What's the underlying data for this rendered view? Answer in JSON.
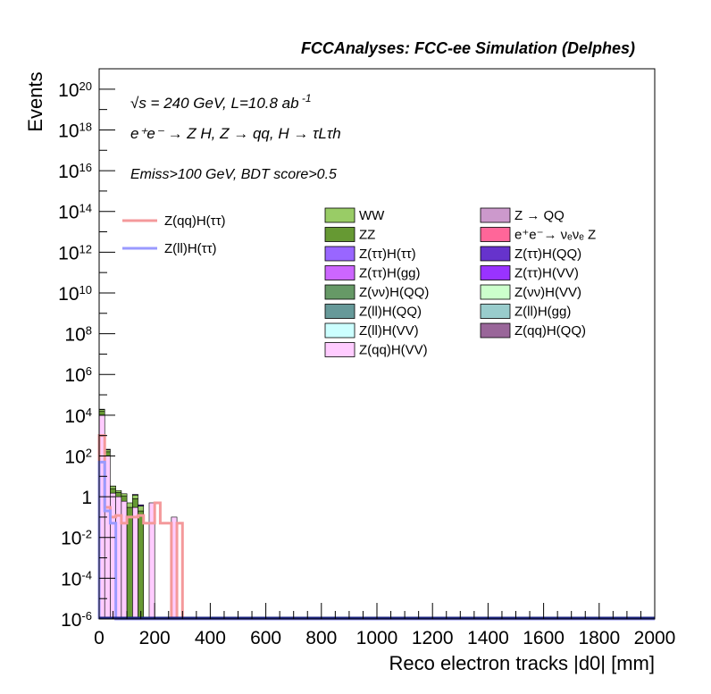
{
  "chart_data": {
    "type": "histogram",
    "title": "FCCAnalyses: FCC-ee Simulation (Delphes)",
    "xlabel": "Reco electron tracks |d0| [mm]",
    "ylabel": "Events",
    "xlim": [
      0,
      2000
    ],
    "ylim": [
      1e-06,
      1e+21
    ],
    "yscale": "log",
    "grid": false,
    "annotations": [
      "√s = 240 GeV, L=10.8 ab⁻¹",
      "e⁺e⁻ → Z H, Z → qq, H → τLτh",
      "Emiss>100 GeV, BDT score>0.5"
    ],
    "x_ticks": [
      0,
      200,
      400,
      600,
      800,
      1000,
      1200,
      1400,
      1600,
      1800,
      2000
    ],
    "y_ticks": [
      "10^-6",
      "10^-4",
      "10^-2",
      "1",
      "10^2",
      "10^4",
      "10^6",
      "10^8",
      "10^10",
      "10^12",
      "10^14",
      "10^16",
      "10^18",
      "10^20"
    ],
    "signal_legend": [
      {
        "name": "Z(qq)H(ττ)",
        "color": "#f4999b"
      },
      {
        "name": "Z(ll)H(ττ)",
        "color": "#9a9aff"
      }
    ],
    "background_legend": [
      {
        "name": "WW",
        "color": "#99cc66"
      },
      {
        "name": "Z → QQ",
        "color": "#cc99cc"
      },
      {
        "name": "ZZ",
        "color": "#669933"
      },
      {
        "name": "e⁺e⁻→ νₑνₑ Z",
        "color": "#ff6699"
      },
      {
        "name": "Z(ττ)H(ττ)",
        "color": "#9966ff"
      },
      {
        "name": "Z(ττ)H(QQ)",
        "color": "#6633cc"
      },
      {
        "name": "Z(ττ)H(gg)",
        "color": "#cc66ff"
      },
      {
        "name": "Z(ττ)H(VV)",
        "color": "#9933ff"
      },
      {
        "name": "Z(νν)H(QQ)",
        "color": "#669966"
      },
      {
        "name": "Z(νν)H(VV)",
        "color": "#ccffcc"
      },
      {
        "name": "Z(ll)H(QQ)",
        "color": "#669999"
      },
      {
        "name": "Z(ll)H(gg)",
        "color": "#99cccc"
      },
      {
        "name": "Z(ll)H(VV)",
        "color": "#ccffff"
      },
      {
        "name": "Z(qq)H(QQ)",
        "color": "#996699"
      },
      {
        "name": "Z(qq)H(VV)",
        "color": "#ffccff"
      }
    ],
    "bin_width": 20,
    "stack_series": [
      {
        "name": "Z(qq)H(VV)",
        "color": "#ffccff",
        "bins": [
          [
            0,
            10000.0
          ],
          [
            20,
            100
          ],
          [
            40,
            1.5
          ],
          [
            60,
            1
          ],
          [
            80,
            0.6
          ],
          [
            120,
            0.3
          ],
          [
            180,
            0.5
          ],
          [
            260,
            0.1
          ]
        ]
      },
      {
        "name": "ZZ",
        "color": "#669933",
        "bins": [
          [
            0,
            6000.0
          ],
          [
            20,
            60
          ],
          [
            40,
            1
          ],
          [
            60,
            0.6
          ],
          [
            80,
            0.5
          ],
          [
            100,
            0.3
          ],
          [
            120,
            0.5
          ],
          [
            140,
            0.2
          ]
        ]
      },
      {
        "name": "WW",
        "color": "#99cc66",
        "bins": [
          [
            0,
            3000.0
          ],
          [
            20,
            40
          ],
          [
            40,
            0.8
          ],
          [
            60,
            0.4
          ],
          [
            80,
            0.3
          ],
          [
            100,
            0.2
          ],
          [
            120,
            0.4
          ],
          [
            140,
            0.15
          ]
        ]
      },
      {
        "name": "Z(ττ)H(ττ)",
        "color": "#9966ff",
        "bins": [
          [
            0,
            500
          ],
          [
            20,
            10
          ],
          [
            40,
            0.05
          ]
        ]
      },
      {
        "name": "e⁺e⁻→ νₑνₑ Z",
        "color": "#ff6699",
        "bins": [
          [
            0,
            100
          ],
          [
            20,
            0.5
          ]
        ]
      },
      {
        "name": "Z(ττ)H(VV)",
        "color": "#9933ff",
        "bins": [
          [
            120,
            0.1
          ]
        ]
      },
      {
        "name": "Z(ττ)H(QQ)",
        "color": "#6633cc",
        "bins": [
          [
            140,
            0.05
          ]
        ]
      }
    ],
    "signal_series": [
      {
        "name": "Z(qq)H(ττ)",
        "color": "#f4999b",
        "bins": [
          [
            0,
            1000
          ],
          [
            20,
            0.3
          ],
          [
            40,
            0.1
          ],
          [
            60,
            0.12
          ],
          [
            80,
            0.05
          ],
          [
            100,
            0.1
          ],
          [
            120,
            0.1
          ],
          [
            140,
            0.12
          ],
          [
            160,
            0.05
          ],
          [
            180,
            0.05
          ],
          [
            200,
            0.5
          ],
          [
            220,
            0.05
          ],
          [
            240,
            0.05
          ],
          [
            280,
            0.05
          ]
        ]
      },
      {
        "name": "Z(ll)H(ττ)",
        "color": "#9a9aff",
        "bins": [
          [
            0,
            50
          ],
          [
            20,
            0.2
          ],
          [
            40,
            0.05
          ]
        ]
      }
    ]
  }
}
